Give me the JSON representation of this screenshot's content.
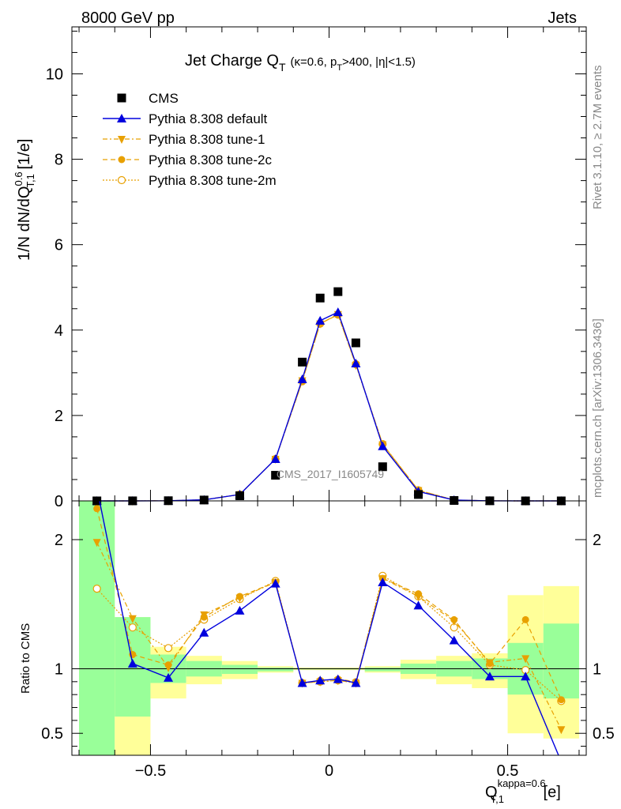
{
  "header": {
    "left": "8000 GeV pp",
    "right": "Jets"
  },
  "plot_title": {
    "main": "Jet Charge Q",
    "main_sub": "T",
    "cuts_pre": "(κ=0.6, p",
    "cuts_sub": "T",
    "cuts_post": ">400, |η|<1.5)"
  },
  "side_labels": {
    "rivet": "Rivet 3.1.10, ≥ 2.7M events",
    "mcplots": "mcplots.cern.ch [arXiv:1306.3436]"
  },
  "watermark": "CMS_2017_I1605749",
  "axes": {
    "ylabel_pre": "1/N dN/dQ",
    "ylabel_sup": "0.6",
    "ylabel_sub": "T,1",
    "ylabel_post": " [1/e]",
    "ratio_ylabel": "Ratio to CMS",
    "xlabel_main": "Q",
    "xlabel_sup": "kappa=0.6",
    "xlabel_sub": "T,1",
    "xlabel_post": " [e]"
  },
  "colors": {
    "cms": "#000000",
    "default": "#0000dd",
    "tune": "#e8a000",
    "band_green": "#99ff99",
    "band_yellow": "#ffff99"
  },
  "chart_data": {
    "type": "line",
    "x": [
      -0.65,
      -0.55,
      -0.45,
      -0.35,
      -0.25,
      -0.15,
      -0.075,
      -0.025,
      0.025,
      0.075,
      0.15,
      0.25,
      0.35,
      0.45,
      0.55,
      0.65
    ],
    "xlim": [
      -0.72,
      0.72
    ],
    "xticks": [
      -0.5,
      0,
      0.5
    ],
    "xtick_labels": [
      "−0.5",
      "0",
      "0.5"
    ],
    "main_ylim": [
      0,
      11.1
    ],
    "main_yticks": [
      0,
      2,
      4,
      6,
      8,
      10
    ],
    "ratio_ylim": [
      0.33,
      2.3
    ],
    "ratio_yticks": [
      0.5,
      1,
      2
    ],
    "series": [
      {
        "name": "CMS",
        "key": "cms",
        "marker": "square",
        "values": [
          0.0,
          0.001,
          0.004,
          0.02,
          0.12,
          0.6,
          3.25,
          4.75,
          4.9,
          3.7,
          0.8,
          0.15,
          0.01,
          0.002,
          0.0,
          0.0
        ]
      },
      {
        "name": "Pythia 8.308 default",
        "key": "default",
        "marker": "triangle-up",
        "values": [
          0.0,
          0.0,
          0.003,
          0.025,
          0.15,
          0.98,
          2.85,
          4.22,
          4.42,
          3.22,
          1.28,
          0.22,
          0.02,
          0.002,
          0.0,
          0.0
        ],
        "ratio": [
          2.4,
          1.04,
          0.93,
          1.28,
          1.45,
          1.66,
          0.89,
          0.91,
          0.92,
          0.89,
          1.67,
          1.49,
          1.22,
          0.94,
          0.94,
          0.28
        ]
      },
      {
        "name": "Pythia 8.308 tune-1",
        "key": "tune1",
        "marker": "triangle-down",
        "values": [
          0.0,
          0.0,
          0.003,
          0.025,
          0.15,
          0.98,
          2.82,
          4.15,
          4.37,
          3.18,
          1.32,
          0.25,
          0.02,
          0.002,
          0.0,
          0.0
        ],
        "ratio": [
          1.98,
          1.39,
          1.01,
          1.42,
          1.55,
          1.67,
          0.89,
          0.9,
          0.91,
          0.89,
          1.7,
          1.56,
          1.37,
          1.05,
          1.08,
          0.53
        ]
      },
      {
        "name": "Pythia 8.308 tune-2c",
        "key": "tune2c",
        "marker": "circle",
        "values": [
          0.0,
          0.0,
          0.003,
          0.025,
          0.15,
          0.98,
          2.8,
          4.15,
          4.36,
          3.2,
          1.33,
          0.25,
          0.02,
          0.002,
          0.0,
          0.0
        ],
        "ratio": [
          2.24,
          1.11,
          1.03,
          1.4,
          1.56,
          1.67,
          0.89,
          0.91,
          0.92,
          0.9,
          1.7,
          1.58,
          1.38,
          1.04,
          1.38,
          0.76
        ]
      },
      {
        "name": "Pythia 8.308 tune-2m",
        "key": "tune2m",
        "marker": "open-circle",
        "values": [
          0.0,
          0.0,
          0.003,
          0.025,
          0.15,
          0.98,
          2.8,
          4.15,
          4.36,
          3.2,
          1.33,
          0.25,
          0.02,
          0.002,
          0.0,
          0.0
        ],
        "ratio": [
          1.62,
          1.32,
          1.16,
          1.38,
          1.54,
          1.68,
          0.89,
          0.9,
          0.91,
          0.89,
          1.72,
          1.56,
          1.32,
          1.03,
          0.99,
          0.75
        ]
      }
    ],
    "ratio_bands": [
      {
        "x0": -0.7,
        "x1": -0.6,
        "g": [
          0.0,
          2.5
        ],
        "y": [
          0.0,
          2.5
        ]
      },
      {
        "x0": -0.6,
        "x1": -0.5,
        "g": [
          0.63,
          1.4
        ],
        "y": [
          0.0,
          1.4
        ]
      },
      {
        "x0": -0.5,
        "x1": -0.4,
        "g": [
          0.89,
          1.11
        ],
        "y": [
          0.77,
          1.17
        ]
      },
      {
        "x0": -0.4,
        "x1": -0.3,
        "g": [
          0.94,
          1.06
        ],
        "y": [
          0.88,
          1.1
        ]
      },
      {
        "x0": -0.3,
        "x1": -0.2,
        "g": [
          0.96,
          1.03
        ],
        "y": [
          0.92,
          1.06
        ]
      },
      {
        "x0": -0.2,
        "x1": -0.1,
        "g": [
          0.98,
          1.01
        ],
        "y": [
          0.97,
          1.02
        ]
      },
      {
        "x0": -0.1,
        "x1": 0.1,
        "g": [
          0.995,
          1.005
        ],
        "y": [
          0.99,
          1.01
        ]
      },
      {
        "x0": 0.1,
        "x1": 0.2,
        "g": [
          0.98,
          1.01
        ],
        "y": [
          0.97,
          1.02
        ]
      },
      {
        "x0": 0.2,
        "x1": 0.3,
        "g": [
          0.96,
          1.04
        ],
        "y": [
          0.92,
          1.07
        ]
      },
      {
        "x0": 0.3,
        "x1": 0.4,
        "g": [
          0.94,
          1.06
        ],
        "y": [
          0.88,
          1.1
        ]
      },
      {
        "x0": 0.4,
        "x1": 0.5,
        "g": [
          0.92,
          1.08
        ],
        "y": [
          0.85,
          1.12
        ]
      },
      {
        "x0": 0.5,
        "x1": 0.6,
        "g": [
          0.8,
          1.2
        ],
        "y": [
          0.5,
          1.57
        ]
      },
      {
        "x0": 0.6,
        "x1": 0.7,
        "g": [
          0.77,
          1.35
        ],
        "y": [
          0.46,
          1.64
        ]
      }
    ]
  }
}
